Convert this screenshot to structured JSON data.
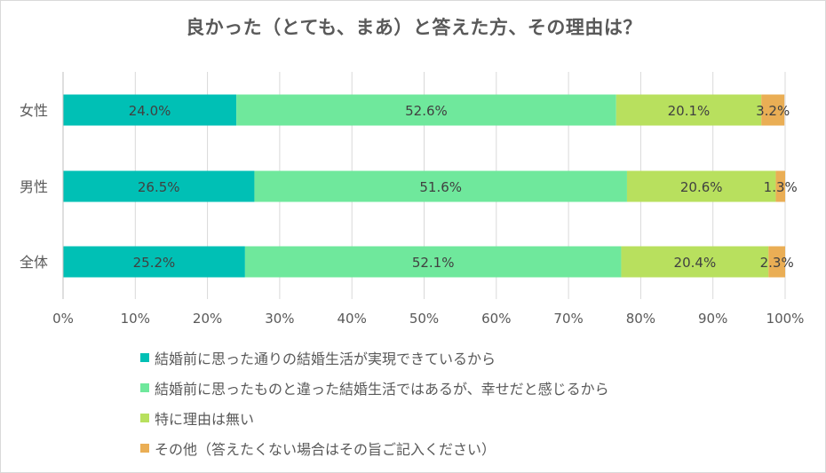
{
  "chart_data": {
    "type": "bar",
    "orientation": "horizontal",
    "stacked": "percent",
    "title": "良かった（とても、まあ）と答えた方、その理由は？",
    "categories": [
      "女性",
      "男性",
      "全体"
    ],
    "series": [
      {
        "name": "結婚前に思った通りの結婚生活が実現できているから",
        "color": "#00c0b5",
        "values": [
          24.0,
          26.5,
          25.2
        ],
        "labels": [
          "24.0%",
          "26.5%",
          "25.2%"
        ]
      },
      {
        "name": "結婚前に思ったものと違った結婚生活ではあるが、幸せだと感じるから",
        "color": "#6fe89c",
        "values": [
          52.6,
          51.6,
          52.1
        ],
        "labels": [
          "52.6%",
          "51.6%",
          "52.1%"
        ]
      },
      {
        "name": "特に理由は無い",
        "color": "#b8e05e",
        "values": [
          20.1,
          20.6,
          20.4
        ],
        "labels": [
          "20.1%",
          "20.6%",
          "20.4%"
        ]
      },
      {
        "name": "その他（答えたくない場合はその旨ご記入ください）",
        "color": "#eaae55",
        "values": [
          3.2,
          1.3,
          2.3
        ],
        "labels": [
          "3.2%",
          "1.3%",
          "2.3%"
        ]
      }
    ],
    "xlim": [
      0,
      100
    ],
    "ticks": [
      "0%",
      "10%",
      "20%",
      "30%",
      "40%",
      "50%",
      "60%",
      "70%",
      "80%",
      "90%",
      "100%"
    ],
    "grid": true,
    "legend_position": "bottom"
  }
}
